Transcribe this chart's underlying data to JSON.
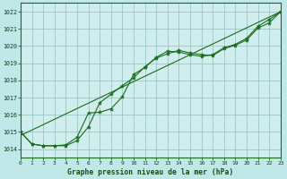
{
  "title": "Graphe pression niveau de la mer (hPa)",
  "bg_color": "#c0e8e8",
  "plot_bg_color": "#d0eeee",
  "grid_color": "#90c0c0",
  "line_color": "#1a6b1a",
  "xlim": [
    0,
    23
  ],
  "ylim": [
    1013.5,
    1022.5
  ],
  "yticks": [
    1014,
    1015,
    1016,
    1017,
    1018,
    1019,
    1020,
    1021,
    1022
  ],
  "xticks": [
    0,
    1,
    2,
    3,
    4,
    5,
    6,
    7,
    8,
    9,
    10,
    11,
    12,
    13,
    14,
    15,
    16,
    17,
    18,
    19,
    20,
    21,
    22,
    23
  ],
  "series1_x": [
    0,
    1,
    2,
    3,
    4,
    5,
    6,
    7,
    8,
    9,
    10,
    11,
    12,
    13,
    14,
    15,
    16,
    17,
    18,
    19,
    20,
    21,
    22,
    23
  ],
  "series1_y": [
    1015.0,
    1014.3,
    1014.2,
    1014.2,
    1014.2,
    1014.5,
    1015.3,
    1016.7,
    1017.2,
    1017.7,
    1018.15,
    1018.8,
    1019.3,
    1019.55,
    1019.75,
    1019.6,
    1019.5,
    1019.45,
    1019.85,
    1020.05,
    1020.35,
    1021.05,
    1021.35,
    1022.0
  ],
  "series2_x": [
    0,
    1,
    2,
    3,
    4,
    5,
    6,
    7,
    8,
    9,
    10,
    11,
    12,
    13,
    14,
    15,
    16,
    17,
    18,
    19,
    20,
    21,
    22,
    23
  ],
  "series2_y": [
    1015.0,
    1014.3,
    1014.2,
    1014.2,
    1014.25,
    1014.7,
    1016.1,
    1016.15,
    1016.35,
    1017.05,
    1018.35,
    1018.75,
    1019.35,
    1019.7,
    1019.65,
    1019.5,
    1019.4,
    1019.5,
    1019.9,
    1020.1,
    1020.45,
    1021.15,
    1021.55,
    1022.0
  ],
  "trend_x": [
    0,
    23
  ],
  "trend_y": [
    1014.8,
    1022.0
  ]
}
